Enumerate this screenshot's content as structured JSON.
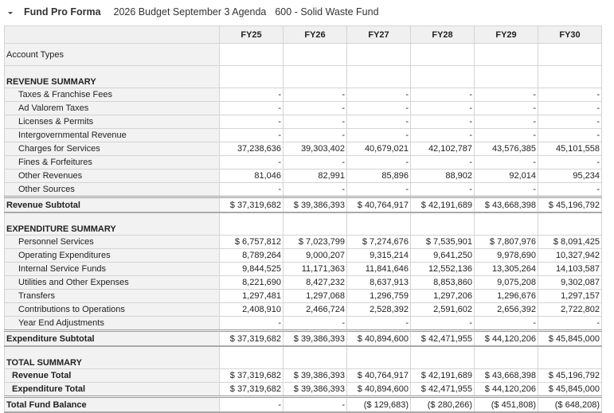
{
  "header": {
    "title": "Fund Pro Forma",
    "budget": "2026 Budget September 3 Agenda",
    "fund": "600 - Solid Waste Fund",
    "collapse_icon": "caret-down-icon"
  },
  "columns": [
    "FY25",
    "FY26",
    "FY27",
    "FY28",
    "FY29",
    "FY30"
  ],
  "rows": [
    {
      "type": "account",
      "label": "Account Types",
      "values": [
        "",
        "",
        "",
        "",
        "",
        ""
      ]
    },
    {
      "type": "section",
      "label": "REVENUE SUMMARY",
      "values": [
        "",
        "",
        "",
        "",
        "",
        ""
      ]
    },
    {
      "type": "item",
      "label": "Taxes & Franchise Fees",
      "values": [
        "-",
        "-",
        "-",
        "-",
        "-",
        "-"
      ]
    },
    {
      "type": "item",
      "label": "Ad Valorem Taxes",
      "values": [
        "-",
        "-",
        "-",
        "-",
        "-",
        "-"
      ]
    },
    {
      "type": "item",
      "label": "Licenses & Permits",
      "values": [
        "-",
        "-",
        "-",
        "-",
        "-",
        "-"
      ]
    },
    {
      "type": "item",
      "label": "Intergovernmental Revenue",
      "values": [
        "-",
        "-",
        "-",
        "-",
        "-",
        "-"
      ]
    },
    {
      "type": "item",
      "label": "Charges for Services",
      "values": [
        "37,238,636",
        "39,303,402",
        "40,679,021",
        "42,102,787",
        "43,576,385",
        "45,101,558"
      ]
    },
    {
      "type": "item",
      "label": "Fines & Forfeitures",
      "values": [
        "-",
        "-",
        "-",
        "-",
        "-",
        "-"
      ]
    },
    {
      "type": "item",
      "label": "Other Revenues",
      "values": [
        "81,046",
        "82,991",
        "85,896",
        "88,902",
        "92,014",
        "95,234"
      ]
    },
    {
      "type": "item",
      "label": "Other Sources",
      "values": [
        "-",
        "-",
        "-",
        "-",
        "-",
        "-"
      ]
    },
    {
      "type": "subtotal",
      "label": "Revenue Subtotal",
      "values": [
        "$ 37,319,682",
        "$ 39,386,393",
        "$ 40,764,917",
        "$ 42,191,689",
        "$ 43,668,398",
        "$ 45,196,792"
      ]
    },
    {
      "type": "section",
      "label": "EXPENDITURE SUMMARY",
      "values": [
        "",
        "",
        "",
        "",
        "",
        ""
      ]
    },
    {
      "type": "item",
      "label": "Personnel Services",
      "values": [
        "$ 6,757,812",
        "$ 7,023,799",
        "$ 7,274,676",
        "$ 7,535,901",
        "$ 7,807,976",
        "$ 8,091,425"
      ]
    },
    {
      "type": "item",
      "label": "Operating Expenditures",
      "values": [
        "8,789,264",
        "9,000,207",
        "9,315,214",
        "9,641,250",
        "9,978,690",
        "10,327,942"
      ]
    },
    {
      "type": "item",
      "label": "Internal Service Funds",
      "values": [
        "9,844,525",
        "11,171,363",
        "11,841,646",
        "12,552,136",
        "13,305,264",
        "14,103,587"
      ]
    },
    {
      "type": "item",
      "label": "Utilities and Other Expenses",
      "values": [
        "8,221,690",
        "8,427,232",
        "8,637,913",
        "8,853,860",
        "9,075,208",
        "9,302,087"
      ]
    },
    {
      "type": "item",
      "label": "Transfers",
      "values": [
        "1,297,481",
        "1,297,068",
        "1,296,759",
        "1,297,206",
        "1,296,676",
        "1,297,157"
      ]
    },
    {
      "type": "item",
      "label": "Contributions to Operations",
      "values": [
        "2,408,910",
        "2,466,724",
        "2,528,392",
        "2,591,602",
        "2,656,392",
        "2,722,802"
      ]
    },
    {
      "type": "item",
      "label": "Year End Adjustments",
      "values": [
        "-",
        "-",
        "-",
        "-",
        "-",
        "-"
      ]
    },
    {
      "type": "subtotal",
      "label": "Expenditure Subtotal",
      "values": [
        "$ 37,319,682",
        "$ 39,386,393",
        "$ 40,894,600",
        "$ 42,471,955",
        "$ 44,120,206",
        "$ 45,845,000"
      ]
    },
    {
      "type": "section",
      "label": "TOTAL SUMMARY",
      "values": [
        "",
        "",
        "",
        "",
        "",
        ""
      ]
    },
    {
      "type": "item bold-item",
      "label": "Revenue Total",
      "values": [
        "$ 37,319,682",
        "$ 39,386,393",
        "$ 40,764,917",
        "$ 42,191,689",
        "$ 43,668,398",
        "$ 45,196,792"
      ]
    },
    {
      "type": "item bold-item",
      "label": "Expenditure Total",
      "values": [
        "$ 37,319,682",
        "$ 39,386,393",
        "$ 40,894,600",
        "$ 42,471,955",
        "$ 44,120,206",
        "$ 45,845,000"
      ]
    },
    {
      "type": "grand",
      "label": "Total Fund Balance",
      "values": [
        "-",
        "-",
        "($ 129,683)",
        "($ 280,266)",
        "($ 451,808)",
        "($ 648,208)"
      ]
    }
  ]
}
